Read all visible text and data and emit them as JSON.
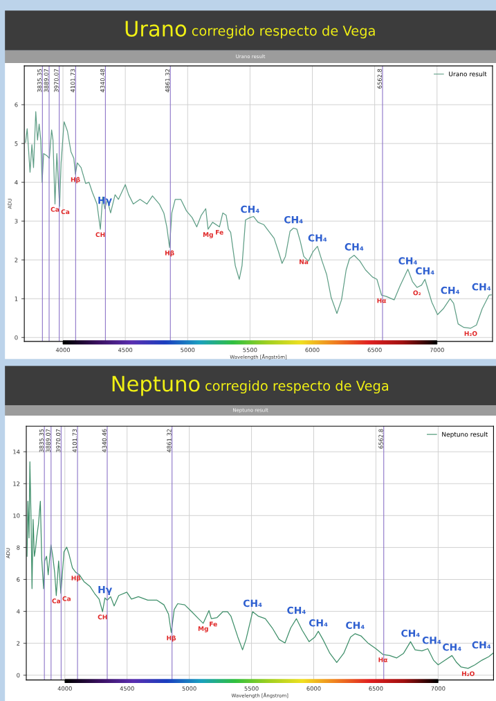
{
  "chart_data": [
    {
      "type": "line",
      "title": "Urano corregido respecto de Vega",
      "subtitle": "Urano result",
      "xlabel": "Wavelength [Ångström]",
      "ylabel": "ADU",
      "xlim": [
        3690,
        7445
      ],
      "ylim": [
        -0.1,
        7.0
      ],
      "xticks": [
        4000,
        4500,
        5000,
        5500,
        6000,
        6500,
        7000
      ],
      "yticks": [
        0,
        1,
        2,
        3,
        4,
        5,
        6
      ],
      "grid": true,
      "legend": "top right",
      "series": [
        {
          "name": "Urano result",
          "color": "#5f9e86",
          "x": [
            3700,
            3713,
            3724,
            3736,
            3751,
            3764,
            3782,
            3796,
            3809,
            3822,
            3833,
            3845,
            3873,
            3891,
            3909,
            3920,
            3936,
            3951,
            3973,
            3985,
            4009,
            4036,
            4064,
            4087,
            4100,
            4115,
            4145,
            4182,
            4209,
            4236,
            4273,
            4300,
            4318,
            4336,
            4355,
            4382,
            4418,
            4445,
            4500,
            4527,
            4564,
            4618,
            4673,
            4718,
            4773,
            4809,
            4833,
            4855,
            4873,
            4900,
            4945,
            4991,
            5036,
            5073,
            5109,
            5145,
            5164,
            5200,
            5255,
            5282,
            5309,
            5327,
            5345,
            5382,
            5414,
            5436,
            5464,
            5500,
            5528,
            5564,
            5610,
            5638,
            5693,
            5729,
            5757,
            5784,
            5821,
            5849,
            5876,
            5904,
            5931,
            5968,
            6005,
            6041,
            6078,
            6115,
            6151,
            6197,
            6234,
            6271,
            6298,
            6335,
            6381,
            6427,
            6482,
            6518,
            6555,
            6592,
            6656,
            6702,
            6766,
            6803,
            6839,
            6876,
            6903,
            6958,
            7004,
            7050,
            7105,
            7133,
            7169,
            7215,
            7270,
            7316,
            7362,
            7417,
            7435
          ],
          "values": [
            5.03,
            5.38,
            4.85,
            4.26,
            4.97,
            4.38,
            5.82,
            5.09,
            5.5,
            5.09,
            4.0,
            4.74,
            4.68,
            4.62,
            5.35,
            5.09,
            3.44,
            4.74,
            3.38,
            4.5,
            5.56,
            5.32,
            4.79,
            4.62,
            4.21,
            4.5,
            4.38,
            3.97,
            4.0,
            3.74,
            3.44,
            2.79,
            3.62,
            3.32,
            3.56,
            3.21,
            3.68,
            3.56,
            3.94,
            3.68,
            3.44,
            3.56,
            3.44,
            3.65,
            3.44,
            3.21,
            2.85,
            2.32,
            3.21,
            3.56,
            3.56,
            3.26,
            3.09,
            2.85,
            3.15,
            3.32,
            2.79,
            2.97,
            2.85,
            3.21,
            3.15,
            2.79,
            2.71,
            1.85,
            1.5,
            1.85,
            3.03,
            3.09,
            3.12,
            2.97,
            2.91,
            2.79,
            2.56,
            2.21,
            1.91,
            2.09,
            2.74,
            2.82,
            2.79,
            2.47,
            2.09,
            1.97,
            2.21,
            2.35,
            1.97,
            1.62,
            1.03,
            0.62,
            0.97,
            1.74,
            2.03,
            2.12,
            1.97,
            1.74,
            1.56,
            1.5,
            1.09,
            1.06,
            0.97,
            1.32,
            1.76,
            1.44,
            1.29,
            1.35,
            1.5,
            0.91,
            0.59,
            0.74,
            1.0,
            0.88,
            0.35,
            0.26,
            0.24,
            0.32,
            0.74,
            1.09,
            1.1
          ]
        }
      ],
      "ref_lines": [
        {
          "axis": "x",
          "value": 3835.35,
          "label": "3835.35",
          "color": "#8c74c8"
        },
        {
          "axis": "x",
          "value": 3889.07,
          "label": "3889.07",
          "color": "#8c74c8"
        },
        {
          "axis": "x",
          "value": 3970.07,
          "label": "3970.07",
          "color": "#8c74c8"
        },
        {
          "axis": "x",
          "value": 4101.73,
          "label": "4101.73",
          "color": "#8c74c8"
        },
        {
          "axis": "x",
          "value": 4340.48,
          "label": "4340.48",
          "color": "#8c74c8"
        },
        {
          "axis": "x",
          "value": 4861.32,
          "label": "4861.32",
          "color": "#8c74c8"
        },
        {
          "axis": "x",
          "value": 6562.8,
          "label": "6562.8",
          "color": "#8c74c8"
        }
      ],
      "annotations": [
        {
          "text": "Ca",
          "x": 3936,
          "y": 3.44
        },
        {
          "text": "Ca",
          "x": 3973,
          "y": 3.38
        },
        {
          "text": "Hβ",
          "x": 4100,
          "y": 4.21
        },
        {
          "text": "Hγ",
          "x": 4336,
          "y": 3.32
        },
        {
          "text": "CH",
          "x": 4300,
          "y": 2.79
        },
        {
          "text": "Hβ",
          "x": 4855,
          "y": 2.32
        },
        {
          "text": "Mg",
          "x": 5164,
          "y": 2.79
        },
        {
          "text": "Fe",
          "x": 5255,
          "y": 2.85
        },
        {
          "text": "CH₄",
          "x": 5500,
          "y": 3.09
        },
        {
          "text": "CH₄",
          "x": 5849,
          "y": 2.82
        },
        {
          "text": "CH₄",
          "x": 6041,
          "y": 2.35
        },
        {
          "text": "Na",
          "x": 5931,
          "y": 2.09
        },
        {
          "text": "CH₄",
          "x": 6335,
          "y": 2.12
        },
        {
          "text": "CH₄",
          "x": 6766,
          "y": 1.76
        },
        {
          "text": "CH₄",
          "x": 6903,
          "y": 1.5
        },
        {
          "text": "CH₄",
          "x": 7105,
          "y": 1.0
        },
        {
          "text": "CH₄",
          "x": 7417,
          "y": 1.09
        },
        {
          "text": "Hα",
          "x": 6555,
          "y": 1.09
        },
        {
          "text": "O₂",
          "x": 6839,
          "y": 1.29
        },
        {
          "text": "H₂O",
          "x": 7270,
          "y": 0.24
        }
      ]
    },
    {
      "type": "line",
      "title": "Neptuno corregido respecto de Vega",
      "subtitle": "Neptuno result",
      "xlabel": "Wavelength [Ångstrom]",
      "ylabel": "ADU",
      "xlim": [
        3690,
        7445
      ],
      "ylim": [
        -0.3,
        15.6
      ],
      "xticks": [
        4000,
        4500,
        5000,
        5500,
        6000,
        6500,
        7000
      ],
      "yticks": [
        0,
        2,
        4,
        6,
        8,
        10,
        12,
        14
      ],
      "grid": true,
      "legend": "top right",
      "series": [
        {
          "name": "Neptuno result",
          "color": "#3f8f6a",
          "x": [
            3696,
            3703,
            3712,
            3719,
            3729,
            3736,
            3745,
            3755,
            3764,
            3773,
            3788,
            3803,
            3814,
            3829,
            3838,
            3853,
            3866,
            3888,
            3903,
            3918,
            3931,
            3950,
            3968,
            3993,
            4015,
            4033,
            4061,
            4089,
            4117,
            4154,
            4201,
            4238,
            4275,
            4303,
            4322,
            4340,
            4368,
            4396,
            4433,
            4498,
            4535,
            4591,
            4666,
            4740,
            4796,
            4833,
            4855,
            4879,
            4907,
            4963,
            5019,
            5074,
            5112,
            5158,
            5177,
            5223,
            5270,
            5307,
            5335,
            5390,
            5428,
            5456,
            5509,
            5556,
            5611,
            5667,
            5722,
            5769,
            5815,
            5861,
            5907,
            5963,
            6009,
            6037,
            6074,
            6130,
            6185,
            6241,
            6296,
            6333,
            6380,
            6435,
            6500,
            6556,
            6611,
            6667,
            6722,
            6778,
            6815,
            6870,
            6917,
            6963,
            7000,
            7056,
            7111,
            7148,
            7185,
            7241,
            7296,
            7352,
            7407,
            7440
          ],
          "values": [
            7.45,
            10.9,
            8.6,
            13.37,
            9.47,
            5.42,
            9.76,
            7.45,
            7.88,
            8.6,
            9.47,
            10.9,
            7.3,
            5.42,
            7.16,
            7.45,
            6.29,
            8.17,
            7.45,
            6.43,
            4.99,
            7.16,
            5.13,
            7.73,
            8.02,
            7.59,
            6.72,
            6.43,
            6.29,
            5.86,
            5.57,
            5.13,
            4.77,
            3.98,
            4.84,
            4.7,
            4.92,
            4.34,
            4.99,
            5.2,
            4.77,
            4.92,
            4.7,
            4.7,
            4.41,
            3.83,
            2.67,
            4.12,
            4.48,
            4.41,
            3.98,
            3.54,
            3.25,
            4.05,
            3.54,
            3.61,
            3.98,
            3.98,
            3.69,
            2.39,
            1.59,
            2.24,
            3.98,
            3.69,
            3.54,
            2.96,
            2.24,
            2.02,
            2.96,
            3.54,
            2.82,
            2.1,
            2.39,
            2.75,
            2.24,
            1.37,
            0.8,
            1.37,
            2.39,
            2.6,
            2.46,
            2.02,
            1.66,
            1.3,
            1.23,
            1.08,
            1.37,
            2.1,
            1.59,
            1.52,
            1.66,
            0.94,
            0.65,
            0.94,
            1.23,
            0.8,
            0.51,
            0.43,
            0.65,
            0.94,
            1.16,
            1.37
          ]
        }
      ],
      "ref_lines": [
        {
          "axis": "x",
          "value": 3835.35,
          "label": "3835.35",
          "color": "#8c74c8"
        },
        {
          "axis": "x",
          "value": 3889.07,
          "label": "3889.07",
          "color": "#8c74c8"
        },
        {
          "axis": "x",
          "value": 3970.07,
          "label": "3970.07",
          "color": "#8c74c8"
        },
        {
          "axis": "x",
          "value": 4101.73,
          "label": "4101.73",
          "color": "#8c74c8"
        },
        {
          "axis": "x",
          "value": 4340.46,
          "label": "4340.46",
          "color": "#8c74c8"
        },
        {
          "axis": "x",
          "value": 4861.32,
          "label": "4861.32",
          "color": "#8c74c8"
        },
        {
          "axis": "x",
          "value": 6562.8,
          "label": "6562.8",
          "color": "#8c74c8"
        }
      ],
      "annotations": [
        {
          "text": "Ca",
          "x": 3931,
          "y": 4.99
        },
        {
          "text": "Ca",
          "x": 3968,
          "y": 5.13
        },
        {
          "text": "Hβ",
          "x": 4089,
          "y": 6.43
        },
        {
          "text": "Hγ",
          "x": 4322,
          "y": 4.84
        },
        {
          "text": "CH",
          "x": 4303,
          "y": 3.98
        },
        {
          "text": "Hβ",
          "x": 4855,
          "y": 2.67
        },
        {
          "text": "Mg",
          "x": 5112,
          "y": 3.25
        },
        {
          "text": "Fe",
          "x": 5177,
          "y": 3.54
        },
        {
          "text": "CH₄",
          "x": 5509,
          "y": 3.98
        },
        {
          "text": "CH₄",
          "x": 5861,
          "y": 3.54
        },
        {
          "text": "CH₄",
          "x": 6037,
          "y": 2.75
        },
        {
          "text": "CH₄",
          "x": 6333,
          "y": 2.6
        },
        {
          "text": "CH₄",
          "x": 6778,
          "y": 2.1
        },
        {
          "text": "CH₄",
          "x": 6917,
          "y": 1.66
        },
        {
          "text": "CH₄",
          "x": 7111,
          "y": 1.23
        },
        {
          "text": "CH₄",
          "x": 7440,
          "y": 1.37
        },
        {
          "text": "Hα",
          "x": 6556,
          "y": 1.3
        },
        {
          "text": "H₂O",
          "x": 7241,
          "y": 0.43
        }
      ]
    }
  ]
}
